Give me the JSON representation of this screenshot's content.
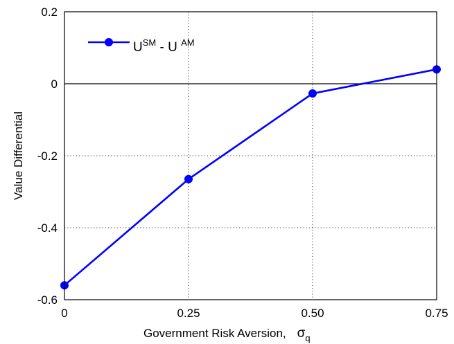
{
  "chart_data": {
    "type": "line",
    "x": [
      0,
      0.25,
      0.5,
      0.75
    ],
    "x_tick_labels": [
      "0",
      "0.25",
      "0.50",
      "0.75"
    ],
    "y_tick_labels": [
      "0.2",
      "0",
      "-0.2",
      "-0.4",
      "-0.6"
    ],
    "y_ticks": [
      0.2,
      0,
      -0.2,
      -0.4,
      -0.6
    ],
    "xlim": [
      0,
      0.75
    ],
    "ylim": [
      -0.6,
      0.2
    ],
    "grid": true,
    "xlabel": "Government Risk Aversion,",
    "xlabel_symbol": "σ",
    "xlabel_symbol_sub": "q",
    "ylabel": "Value Differential",
    "legend_position": "top-left",
    "series": [
      {
        "name": "U^SM - U^AM",
        "legend": {
          "main1": "U",
          "sup1": "SM",
          "mid": " - U ",
          "sup2": "AM"
        },
        "values": [
          -0.56,
          -0.265,
          -0.027,
          0.04
        ],
        "color": "#0000ff"
      }
    ]
  }
}
